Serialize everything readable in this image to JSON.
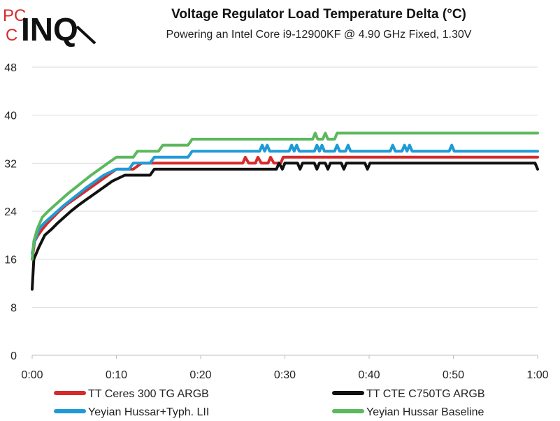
{
  "logo": {
    "small": "PC",
    "large": "INQ"
  },
  "chart_data": {
    "type": "line",
    "title": "Voltage Regulator Load Temperature Delta (°C)",
    "subtitle": "Powering an Intel Core i9-12900KF @ 4.90 GHz Fixed, 1.30V",
    "xlabel": "",
    "ylabel": "",
    "ylim": [
      0,
      48
    ],
    "yticks": [
      "0",
      "8",
      "16",
      "24",
      "32",
      "40",
      "48"
    ],
    "xlim_minutes": [
      0,
      60
    ],
    "xticks": [
      "0:00",
      "0:10",
      "0:20",
      "0:30",
      "0:40",
      "0:50",
      "1:00"
    ],
    "grid": "horizontal",
    "legend_position": "bottom",
    "series": [
      {
        "name": "TT Ceres 300 TG ARGB",
        "color": "#d62b2b",
        "points": [
          [
            0,
            16
          ],
          [
            0.3,
            19
          ],
          [
            0.7,
            20
          ],
          [
            1.2,
            21
          ],
          [
            1.8,
            22
          ],
          [
            2.5,
            23
          ],
          [
            3.2,
            24
          ],
          [
            4,
            25
          ],
          [
            5,
            26
          ],
          [
            6,
            27
          ],
          [
            7,
            28
          ],
          [
            8,
            29
          ],
          [
            9,
            30
          ],
          [
            10,
            31
          ],
          [
            12,
            31
          ],
          [
            13,
            32
          ],
          [
            25,
            32
          ],
          [
            25.3,
            33
          ],
          [
            25.7,
            32
          ],
          [
            26.5,
            32
          ],
          [
            26.8,
            33
          ],
          [
            27.2,
            32
          ],
          [
            28,
            32
          ],
          [
            28.3,
            33
          ],
          [
            28.7,
            32
          ],
          [
            29.5,
            32
          ],
          [
            29.8,
            33
          ],
          [
            60,
            33
          ]
        ]
      },
      {
        "name": "TT CTE C750TG ARGB",
        "color": "#111111",
        "points": [
          [
            0,
            11
          ],
          [
            0.2,
            16
          ],
          [
            0.8,
            18
          ],
          [
            1.5,
            20
          ],
          [
            2.3,
            21
          ],
          [
            3,
            22
          ],
          [
            3.8,
            23
          ],
          [
            4.6,
            24
          ],
          [
            5.5,
            25
          ],
          [
            6.5,
            26
          ],
          [
            7.5,
            27
          ],
          [
            8.5,
            28
          ],
          [
            9.5,
            29
          ],
          [
            11,
            30
          ],
          [
            14,
            30
          ],
          [
            14.5,
            31
          ],
          [
            29,
            31
          ],
          [
            29.3,
            32
          ],
          [
            29.7,
            31
          ],
          [
            30,
            32
          ],
          [
            31.5,
            32
          ],
          [
            31.8,
            31
          ],
          [
            32.1,
            32
          ],
          [
            33.5,
            32
          ],
          [
            33.8,
            31
          ],
          [
            34.1,
            32
          ],
          [
            34.8,
            32
          ],
          [
            35.1,
            31
          ],
          [
            35.4,
            32
          ],
          [
            36.7,
            32
          ],
          [
            37,
            31
          ],
          [
            37.3,
            32
          ],
          [
            39.5,
            32
          ],
          [
            39.8,
            31
          ],
          [
            40.1,
            32
          ],
          [
            59.7,
            32
          ],
          [
            60,
            31
          ]
        ]
      },
      {
        "name": "Yeyian Hussar+Typh. LII",
        "color": "#1e9bd7",
        "points": [
          [
            0,
            17
          ],
          [
            0.3,
            19
          ],
          [
            0.8,
            21
          ],
          [
            1.4,
            22
          ],
          [
            2.2,
            23
          ],
          [
            3,
            24
          ],
          [
            3.8,
            25
          ],
          [
            4.7,
            26
          ],
          [
            5.6,
            27
          ],
          [
            6.5,
            28
          ],
          [
            7.5,
            29
          ],
          [
            8.5,
            30
          ],
          [
            10,
            31
          ],
          [
            11.5,
            31
          ],
          [
            12,
            32
          ],
          [
            14,
            32
          ],
          [
            14.5,
            33
          ],
          [
            18.5,
            33
          ],
          [
            19,
            34
          ],
          [
            27,
            34
          ],
          [
            27.3,
            35
          ],
          [
            27.6,
            34
          ],
          [
            27.9,
            35
          ],
          [
            28.2,
            34
          ],
          [
            30.5,
            34
          ],
          [
            30.8,
            35
          ],
          [
            31.1,
            34
          ],
          [
            31.4,
            35
          ],
          [
            31.7,
            34
          ],
          [
            33.5,
            34
          ],
          [
            33.8,
            35
          ],
          [
            34.1,
            34
          ],
          [
            34.4,
            35
          ],
          [
            34.7,
            34
          ],
          [
            35.9,
            34
          ],
          [
            36.2,
            35
          ],
          [
            36.5,
            34
          ],
          [
            37.2,
            34
          ],
          [
            37.5,
            35
          ],
          [
            37.8,
            34
          ],
          [
            42.5,
            34
          ],
          [
            42.8,
            35
          ],
          [
            43.1,
            34
          ],
          [
            43.9,
            34
          ],
          [
            44.2,
            35
          ],
          [
            44.5,
            34
          ],
          [
            44.8,
            35
          ],
          [
            45.1,
            34
          ],
          [
            49.5,
            34
          ],
          [
            49.8,
            35
          ],
          [
            50.1,
            34
          ],
          [
            60,
            34
          ]
        ]
      },
      {
        "name": "Yeyian Hussar Baseline",
        "color": "#5cb85c",
        "points": [
          [
            0,
            16
          ],
          [
            0.2,
            19
          ],
          [
            0.6,
            21
          ],
          [
            1.2,
            23
          ],
          [
            1.9,
            24
          ],
          [
            2.7,
            25
          ],
          [
            3.5,
            26
          ],
          [
            4.3,
            27
          ],
          [
            5.2,
            28
          ],
          [
            6.1,
            29
          ],
          [
            7,
            30
          ],
          [
            8,
            31
          ],
          [
            9,
            32
          ],
          [
            10,
            33
          ],
          [
            12,
            33
          ],
          [
            12.5,
            34
          ],
          [
            15,
            34
          ],
          [
            15.5,
            35
          ],
          [
            18.5,
            35
          ],
          [
            19,
            36
          ],
          [
            33.3,
            36
          ],
          [
            33.6,
            37
          ],
          [
            33.9,
            36
          ],
          [
            34.5,
            36
          ],
          [
            34.8,
            37
          ],
          [
            35.1,
            36
          ],
          [
            35.9,
            36
          ],
          [
            36.2,
            37
          ],
          [
            60,
            37
          ]
        ]
      }
    ]
  }
}
